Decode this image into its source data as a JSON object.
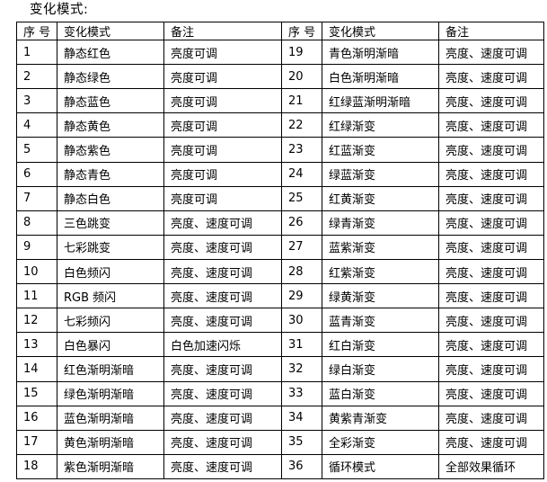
{
  "page": {
    "title": "变化模式:"
  },
  "table": {
    "headers": [
      "序 号",
      "变化模式",
      "备注",
      "序 号",
      "变化模式",
      "备注"
    ],
    "rows": [
      [
        "1",
        "静态红色",
        "亮度可调",
        "19",
        "青色渐明渐暗",
        "亮度、速度可调"
      ],
      [
        "2",
        "静态绿色",
        "亮度可调",
        "20",
        "白色渐明渐暗",
        "亮度、速度可调"
      ],
      [
        "3",
        "静态蓝色",
        "亮度可调",
        "21",
        "红绿蓝渐明渐暗",
        "亮度、速度可调"
      ],
      [
        "4",
        "静态黄色",
        "亮度可调",
        "22",
        "红绿渐变",
        "亮度、速度可调"
      ],
      [
        "5",
        "静态紫色",
        "亮度可调",
        "23",
        "红蓝渐变",
        "亮度、速度可调"
      ],
      [
        "6",
        "静态青色",
        "亮度可调",
        "24",
        "绿蓝渐变",
        "亮度、速度可调"
      ],
      [
        "7",
        "静态白色",
        "亮度可调",
        "25",
        "红黄渐变",
        "亮度、速度可调"
      ],
      [
        "8",
        "三色跳变",
        "亮度、速度可调",
        "26",
        "绿青渐变",
        "亮度、速度可调"
      ],
      [
        "9",
        "七彩跳变",
        "亮度、速度可调",
        "27",
        "蓝紫渐变",
        "亮度、速度可调"
      ],
      [
        "10",
        "白色频闪",
        "亮度、速度可调",
        "28",
        "红紫渐变",
        "亮度、速度可调"
      ],
      [
        "11",
        "RGB 频闪",
        "亮度、速度可调",
        "29",
        "绿黄渐变",
        "亮度、速度可调"
      ],
      [
        "12",
        "七彩频闪",
        "亮度、速度可调",
        "30",
        "蓝青渐变",
        "亮度、速度可调"
      ],
      [
        "13",
        "白色暴闪",
        "白色加速闪烁",
        "31",
        "红白渐变",
        "亮度、速度可调"
      ],
      [
        "14",
        "红色渐明渐暗",
        "亮度、速度可调",
        "32",
        "绿白渐变",
        "亮度、速度可调"
      ],
      [
        "15",
        "绿色渐明渐暗",
        "亮度、速度可调",
        "33",
        "蓝白渐变",
        "亮度、速度可调"
      ],
      [
        "16",
        "蓝色渐明渐暗",
        "亮度、速度可调",
        "34",
        "黄紫青渐变",
        "亮度、速度可调"
      ],
      [
        "17",
        "黄色渐明渐暗",
        "亮度、速度可调",
        "35",
        "全彩渐变",
        "亮度、速度可调"
      ],
      [
        "18",
        "紫色渐明渐暗",
        "亮度、速度可调",
        "36",
        "循环模式",
        "全部效果循环"
      ]
    ]
  },
  "colors": {
    "text": "#000000",
    "border": "#000000",
    "background": "#ffffff"
  }
}
